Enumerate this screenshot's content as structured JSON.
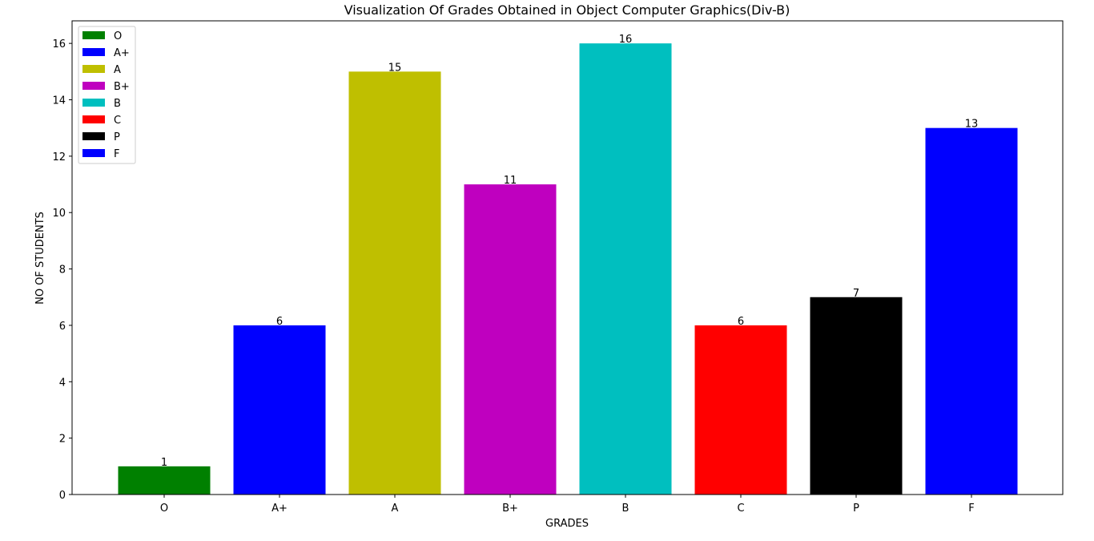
{
  "chart_data": {
    "type": "bar",
    "title": "Visualization Of Grades Obtained in Object Computer Graphics(Div-B)",
    "xlabel": "GRADES",
    "ylabel": "NO OF STUDENTS",
    "categories": [
      "O",
      "A+",
      "A",
      "B+",
      "B",
      "C",
      "P",
      "F"
    ],
    "values": [
      1,
      6,
      15,
      11,
      16,
      6,
      7,
      13
    ],
    "colors": [
      "#008000",
      "#0000ff",
      "#bfbf00",
      "#bf00bf",
      "#00bfbf",
      "#ff0000",
      "#000000",
      "#0000ff"
    ],
    "ylim": [
      0,
      16.8
    ],
    "yticks": [
      0,
      2,
      4,
      6,
      8,
      10,
      12,
      14,
      16
    ],
    "grid": false,
    "legend_position": "top-left",
    "legend": [
      "O",
      "A+",
      "A",
      "B+",
      "B",
      "C",
      "P",
      "F"
    ],
    "data_labels": true
  }
}
